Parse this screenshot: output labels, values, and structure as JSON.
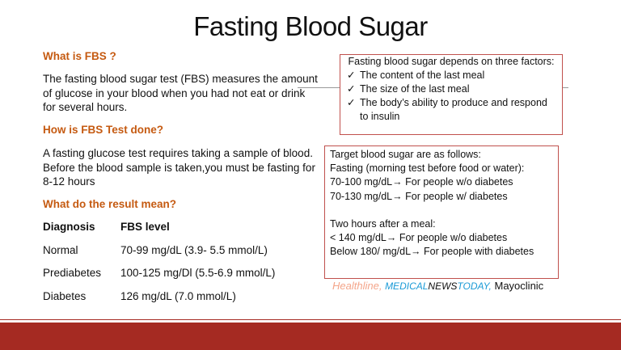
{
  "header": {
    "title": "Fasting Blood Sugar"
  },
  "left": {
    "sections": [
      {
        "heading": "What is FBS ?",
        "text": "The fasting blood sugar test (FBS) measures the amount of glucose in your blood when you had not eat or drink for several hours."
      },
      {
        "heading": "How is FBS Test done?",
        "text": "A fasting glucose test requires taking a sample of blood. Before the blood sample is taken,you must be fasting for 8-12 hours"
      },
      {
        "heading": "What do the result mean?"
      }
    ],
    "table": {
      "header": [
        "Diagnosis",
        "FBS level"
      ],
      "rows": [
        [
          "Normal",
          "70-99 mg/dL (3.9- 5.5 mmol/L)"
        ],
        [
          "Prediabetes",
          "100-125 mg/Dl (5.5-6.9 mmol/L)"
        ],
        [
          "Diabetes",
          "126 mg/dL (7.0 mmol/L)"
        ]
      ]
    }
  },
  "factors": {
    "title": "Fasting blood sugar depends on three factors:",
    "items": [
      "The content of the last meal",
      "The size of the last meal",
      "The body’s ability to produce and respond to insulin"
    ]
  },
  "targets": {
    "lines": [
      "Target blood sugar are as follows:",
      "Fasting (morning test before food or water):",
      "70-100 mg/dL→ For people w/o diabetes",
      "70-130 mg/dL→ For people w/ diabetes",
      "Two hours after a meal:",
      "< 140 mg/dL→ For people w/o diabetes",
      "Below 180/ mg/dL→ For people with diabetes"
    ]
  },
  "sources": [
    "Healthline,",
    "Medical",
    "News",
    "Today,",
    "Mayoclinic"
  ]
}
